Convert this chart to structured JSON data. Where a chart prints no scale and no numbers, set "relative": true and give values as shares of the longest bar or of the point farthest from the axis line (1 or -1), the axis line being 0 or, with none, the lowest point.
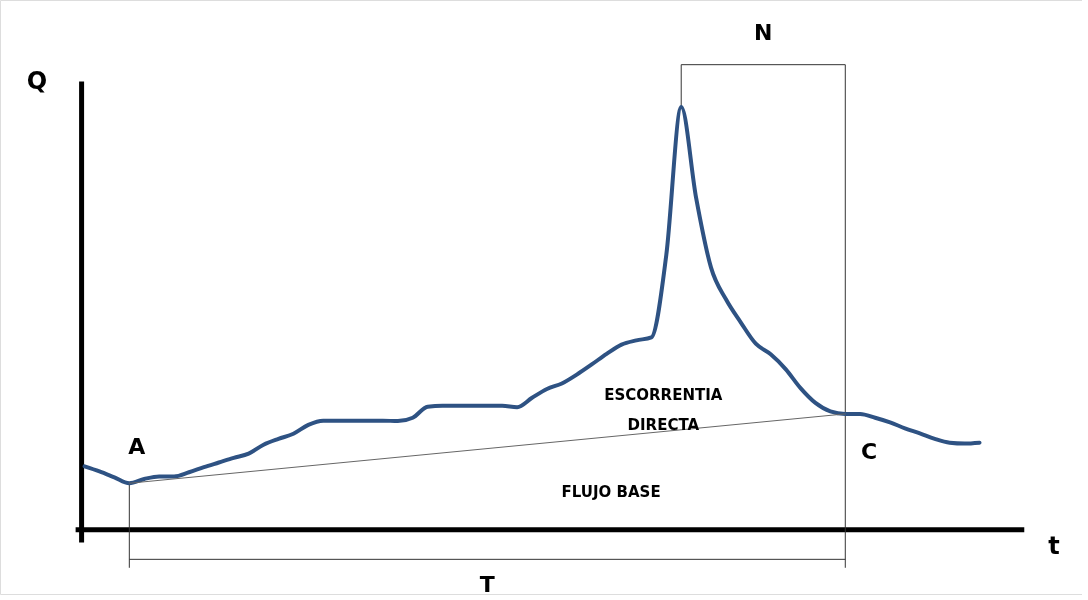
{
  "chart_data": {
    "type": "line",
    "relative": true,
    "xlabel": "t",
    "ylabel": "Q",
    "categories": [
      null,
      null,
      null,
      null,
      null,
      null,
      null,
      null,
      null,
      null,
      null,
      null,
      null,
      null,
      null,
      null,
      null,
      null,
      null,
      null,
      null,
      null,
      null,
      null,
      null,
      null,
      null,
      null,
      null,
      null,
      null,
      null,
      null,
      null,
      null,
      null,
      null,
      null,
      null,
      null,
      null,
      null,
      null,
      null,
      null,
      null,
      null,
      null,
      null,
      null,
      null,
      null,
      null,
      null,
      null,
      null,
      null,
      null,
      null,
      null,
      null
    ],
    "series": [
      {
        "color": "#2e5283",
        "values": [
          0.15,
          0.138,
          0.124,
          0.11,
          0.12,
          0.126,
          0.126,
          0.136,
          0.148,
          0.159,
          0.17,
          0.18,
          0.201,
          0.215,
          0.227,
          0.248,
          0.258,
          0.258,
          0.258,
          0.258,
          0.258,
          0.257,
          0.265,
          0.291,
          0.293,
          0.293,
          0.293,
          0.293,
          0.293,
          0.29,
          0.312,
          0.333,
          0.346,
          0.367,
          0.391,
          0.416,
          0.438,
          0.448,
          0.455,
          0.65,
          1.0,
          0.785,
          0.62,
          0.545,
          0.49,
          0.44,
          0.415,
          0.38,
          0.335,
          0.3,
          0.28,
          0.274,
          0.274,
          0.265,
          0.254,
          0.24,
          0.228,
          0.215,
          0.206,
          0.204,
          0.206
        ]
      },
      {
        "color": "#666666",
        "values": [
          null,
          null,
          null,
          0.11,
          null,
          null,
          null,
          null,
          null,
          null,
          null,
          null,
          null,
          null,
          null,
          null,
          null,
          null,
          null,
          null,
          null,
          null,
          null,
          null,
          null,
          null,
          null,
          null,
          null,
          null,
          null,
          null,
          null,
          null,
          null,
          null,
          null,
          null,
          null,
          null,
          null,
          null,
          null,
          null,
          null,
          null,
          null,
          null,
          null,
          null,
          null,
          0.274,
          null,
          null,
          null,
          null,
          null,
          null,
          null,
          null,
          null
        ]
      }
    ],
    "annotations": [
      "A",
      "C",
      "N",
      "T",
      "ESCORRENTIA DIRECTA",
      "FLUJO BASE"
    ]
  }
}
